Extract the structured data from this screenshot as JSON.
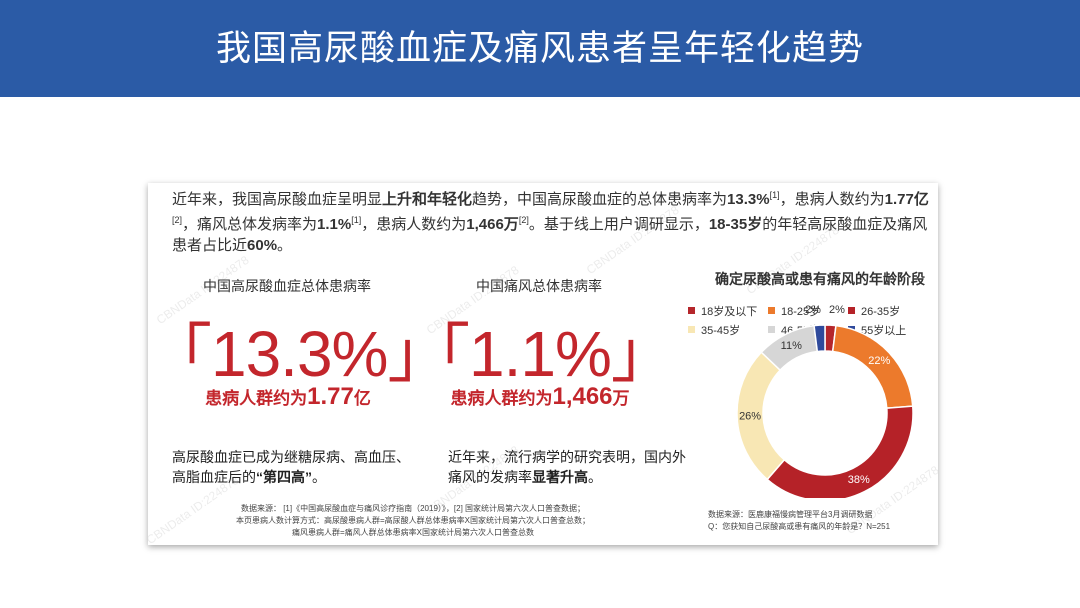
{
  "header": {
    "title": "我国高尿酸血症及痛风患者呈年轻化趋势"
  },
  "card": {
    "paragraph": [
      {
        "text": "近年来，我国高尿酸血症呈明显",
        "style": "normal"
      },
      {
        "text": "上升和年轻化",
        "style": "bold"
      },
      {
        "text": "趋势，中国高尿酸血症的总体患病率为",
        "style": "normal"
      },
      {
        "text": "13.3%",
        "style": "bold"
      },
      {
        "text": "[1]",
        "style": "sup"
      },
      {
        "text": "，患病人数约为",
        "style": "normal"
      },
      {
        "text": "1.77亿",
        "style": "bold"
      },
      {
        "text": "[2]",
        "style": "sup"
      },
      {
        "text": "，痛风总体发病率为",
        "style": "normal"
      },
      {
        "text": "1.1%",
        "style": "bold"
      },
      {
        "text": "[1]",
        "style": "sup"
      },
      {
        "text": "，患病人数约为",
        "style": "normal"
      },
      {
        "text": "1,466万",
        "style": "bold"
      },
      {
        "text": "[2]",
        "style": "sup"
      },
      {
        "text": "。基于线上用户调研显示，",
        "style": "normal"
      },
      {
        "text": "18-35岁",
        "style": "bold"
      },
      {
        "text": "的年轻高尿酸血症及痛风患者占比近",
        "style": "normal"
      },
      {
        "text": "60%",
        "style": "bold"
      },
      {
        "text": "。",
        "style": "normal"
      }
    ],
    "columns": [
      {
        "title": "中国高尿酸血症总体患病率",
        "figure": "「13.3%」",
        "subline": [
          {
            "text": "患病人群约为",
            "style": "normal"
          },
          {
            "text": "1.77",
            "style": "big"
          },
          {
            "text": "亿",
            "style": "normal"
          }
        ],
        "desc": [
          {
            "text": "高尿酸血症已成为继糖尿病、高血压、高脂血症后的",
            "style": "normal"
          },
          {
            "text": "“第四高”",
            "style": "bold"
          },
          {
            "text": "。",
            "style": "normal"
          }
        ]
      },
      {
        "title": "中国痛风总体患病率",
        "figure": "「1.1%」",
        "subline": [
          {
            "text": "患病人群约为",
            "style": "normal"
          },
          {
            "text": "1,466",
            "style": "big"
          },
          {
            "text": "万",
            "style": "normal"
          }
        ],
        "desc": [
          {
            "text": "近年来，流行病学的研究表明，国内外痛风的发病率",
            "style": "normal"
          },
          {
            "text": "显著升高",
            "style": "bold"
          },
          {
            "text": "。",
            "style": "normal"
          }
        ]
      }
    ],
    "sources_left": [
      "数据来源： [1]《中国高尿酸血症与痛风诊疗指南（2019）》，[2] 国家统计局第六次人口普查数据；",
      "本页患病人数计算方式：高尿酸患病人群=高尿酸人群总体患病率X国家统计局第六次人口普查总数；",
      "痛风患病人群=痛风人群总体患病率X国家统计局第六次人口普查总数"
    ],
    "sources_right": [
      "数据来源：医鹿康福慢病管理平台3月调研数据",
      "Q：您获知自己尿酸高或患有痛风的年龄是？N=251"
    ],
    "watermark": "CBNData ID:224878"
  },
  "chart_data": {
    "type": "pie",
    "title": "确定尿酸高或患有痛风的年龄阶段",
    "categories": [
      "18岁及以下",
      "18-25岁",
      "26-35岁",
      "35-45岁",
      "46-55岁",
      "55岁以上"
    ],
    "values": [
      2,
      22,
      38,
      26,
      11,
      2
    ],
    "value_labels": [
      "2%",
      "22%",
      "38%",
      "26%",
      "11%",
      "2%"
    ],
    "colors": [
      "#b5262b",
      "#ec7a2c",
      "#b52228",
      "#f8e7b4",
      "#d6d6d6",
      "#2f4a9c"
    ],
    "donut": true
  }
}
